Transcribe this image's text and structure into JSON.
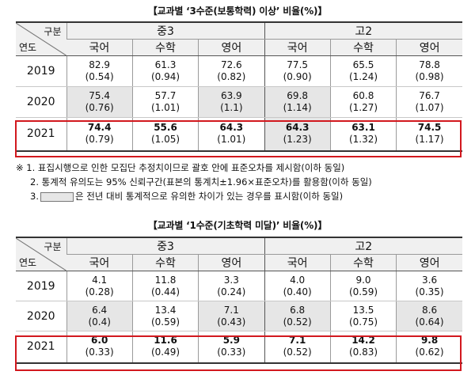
{
  "table1": {
    "title": "【교과별 ‘3수준(보통학력) 이상’ 비율(%)】",
    "header_gubun": "구분",
    "header_year": "연도",
    "groups": [
      "중3",
      "고2"
    ],
    "subjects": [
      "국어",
      "수학",
      "영어",
      "국어",
      "수학",
      "영어"
    ],
    "rows": [
      {
        "year": "2019",
        "bold": false,
        "cells": [
          {
            "v": "82.9",
            "se": "(0.54)",
            "shade": false
          },
          {
            "v": "61.3",
            "se": "(0.94)",
            "shade": false
          },
          {
            "v": "72.6",
            "se": "(0.82)",
            "shade": false
          },
          {
            "v": "77.5",
            "se": "(0.90)",
            "shade": false
          },
          {
            "v": "65.5",
            "se": "(1.24)",
            "shade": false
          },
          {
            "v": "78.8",
            "se": "(0.98)",
            "shade": false
          }
        ]
      },
      {
        "year": "2020",
        "bold": false,
        "cells": [
          {
            "v": "75.4",
            "se": "(0.76)",
            "shade": true
          },
          {
            "v": "57.7",
            "se": "(1.01)",
            "shade": false
          },
          {
            "v": "63.9",
            "se": "(1.1)",
            "shade": true
          },
          {
            "v": "69.8",
            "se": "(1.14)",
            "shade": true
          },
          {
            "v": "60.8",
            "se": "(1.27)",
            "shade": false
          },
          {
            "v": "76.7",
            "se": "(1.07)",
            "shade": false
          }
        ]
      },
      {
        "year": "2021",
        "bold": true,
        "cells": [
          {
            "v": "74.4",
            "se": "(0.79)",
            "shade": false
          },
          {
            "v": "55.6",
            "se": "(1.05)",
            "shade": false
          },
          {
            "v": "64.3",
            "se": "(1.01)",
            "shade": false
          },
          {
            "v": "64.3",
            "se": "(1.23)",
            "shade": true
          },
          {
            "v": "63.1",
            "se": "(1.32)",
            "shade": false
          },
          {
            "v": "74.5",
            "se": "(1.17)",
            "shade": false
          }
        ]
      }
    ]
  },
  "notes": {
    "line1": "※ 1. 표집시행으로 인한 모집단 추정치이므로 괄호 안에 표준오차를 제시함(이하 동일)",
    "line2": "2. 통계적 유의도는 95% 신뢰구간(표본의 통계치±1.96×표준오차)를 활용함(이하 동일)",
    "line3_prefix": "3.",
    "line3_suffix": "은 전년 대비 통계적으로 유의한 차이가 있는 경우를 표시함(이하 동일)"
  },
  "table2": {
    "title": "【교과별 ‘1수준(기초학력 미달)’ 비율(%)】",
    "header_gubun": "구분",
    "header_year": "연도",
    "groups": [
      "중3",
      "고2"
    ],
    "subjects": [
      "국어",
      "수학",
      "영어",
      "국어",
      "수학",
      "영어"
    ],
    "rows": [
      {
        "year": "2019",
        "bold": false,
        "cells": [
          {
            "v": "4.1",
            "se": "(0.28)",
            "shade": false
          },
          {
            "v": "11.8",
            "se": "(0.44)",
            "shade": false
          },
          {
            "v": "3.3",
            "se": "(0.24)",
            "shade": false
          },
          {
            "v": "4.0",
            "se": "(0.40)",
            "shade": false
          },
          {
            "v": "9.0",
            "se": "(0.59)",
            "shade": false
          },
          {
            "v": "3.6",
            "se": "(0.35)",
            "shade": false
          }
        ]
      },
      {
        "year": "2020",
        "bold": false,
        "cells": [
          {
            "v": "6.4",
            "se": "(0.4)",
            "shade": true
          },
          {
            "v": "13.4",
            "se": "(0.59)",
            "shade": false
          },
          {
            "v": "7.1",
            "se": "(0.43)",
            "shade": true
          },
          {
            "v": "6.8",
            "se": "(0.52)",
            "shade": true
          },
          {
            "v": "13.5",
            "se": "(0.75)",
            "shade": false
          },
          {
            "v": "8.6",
            "se": "(0.64)",
            "shade": true
          }
        ]
      },
      {
        "year": "2021",
        "bold": true,
        "cells": [
          {
            "v": "6.0",
            "se": "(0.33)",
            "shade": false
          },
          {
            "v": "11.6",
            "se": "(0.49)",
            "shade": false
          },
          {
            "v": "5.9",
            "se": "(0.33)",
            "shade": false
          },
          {
            "v": "7.1",
            "se": "(0.52)",
            "shade": false
          },
          {
            "v": "14.2",
            "se": "(0.83)",
            "shade": false
          },
          {
            "v": "9.8",
            "se": "(0.62)",
            "shade": false
          }
        ]
      }
    ]
  },
  "colors": {
    "highlight_border": "#d2181e",
    "shade": "#e6e6e6",
    "header_bg": "#f0f0f0"
  }
}
